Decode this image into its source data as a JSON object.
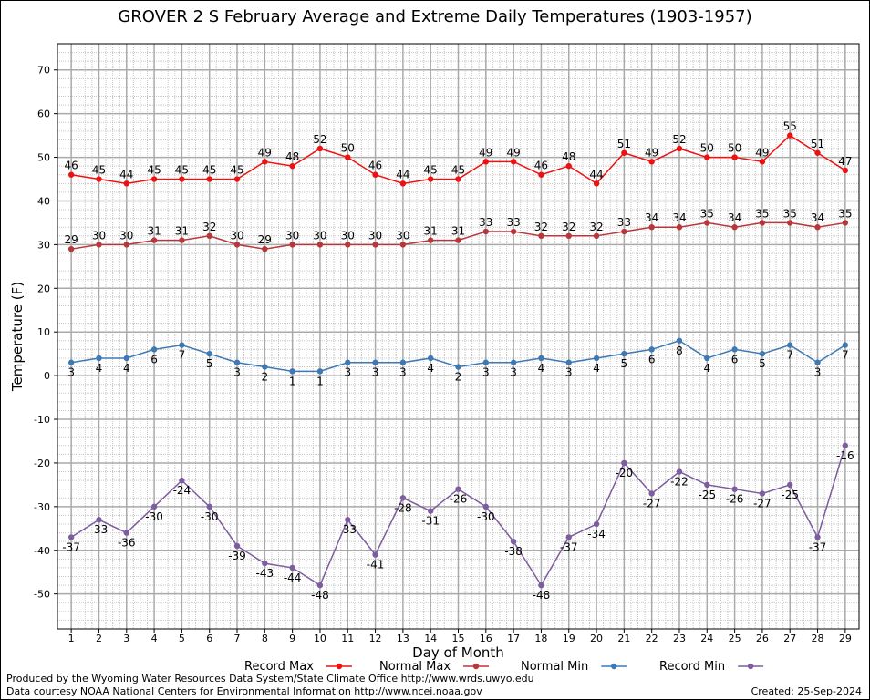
{
  "chart_data": {
    "type": "line",
    "title": "GROVER 2 S February Average and Extreme Daily Temperatures (1903-1957)",
    "xlabel": "Day of Month",
    "ylabel": "Temperature (F)",
    "x": [
      1,
      2,
      3,
      4,
      5,
      6,
      7,
      8,
      9,
      10,
      11,
      12,
      13,
      14,
      15,
      16,
      17,
      18,
      19,
      20,
      21,
      22,
      23,
      24,
      25,
      26,
      27,
      28,
      29
    ],
    "xlim": [
      0.5,
      29.5
    ],
    "ylim": [
      -58,
      76
    ],
    "yticks": [
      -50,
      -40,
      -30,
      -20,
      -10,
      0,
      10,
      20,
      30,
      40,
      50,
      60,
      70
    ],
    "grid": true,
    "legend_position": "bottom",
    "series": [
      {
        "name": "Record Max",
        "color": "#ee1111",
        "label_pos": "above",
        "values": [
          46,
          45,
          44,
          45,
          45,
          45,
          45,
          49,
          48,
          52,
          50,
          46,
          44,
          45,
          45,
          49,
          49,
          46,
          48,
          44,
          51,
          49,
          52,
          50,
          50,
          49,
          55,
          51,
          47
        ]
      },
      {
        "name": "Normal Max",
        "color": "#b8373b",
        "label_pos": "above",
        "values": [
          29,
          30,
          30,
          31,
          31,
          32,
          30,
          29,
          30,
          30,
          30,
          30,
          30,
          31,
          31,
          33,
          33,
          32,
          32,
          32,
          33,
          34,
          34,
          35,
          34,
          35,
          35,
          34,
          35
        ]
      },
      {
        "name": "Normal Min",
        "color": "#3e79b4",
        "label_pos": "below",
        "values": [
          3,
          4,
          4,
          6,
          7,
          5,
          3,
          2,
          1,
          1,
          3,
          3,
          3,
          4,
          2,
          3,
          3,
          4,
          3,
          4,
          5,
          6,
          8,
          4,
          6,
          5,
          7,
          3,
          7
        ]
      },
      {
        "name": "Record Min",
        "color": "#7d5ca0",
        "label_pos": "below",
        "values": [
          -37,
          -33,
          -36,
          -30,
          -24,
          -30,
          -39,
          -43,
          -44,
          -48,
          -33,
          -41,
          -28,
          -31,
          -26,
          -30,
          -38,
          -48,
          -37,
          -34,
          -20,
          -27,
          -22,
          -25,
          -26,
          -27,
          -25,
          -37,
          -16
        ]
      }
    ]
  },
  "footer": {
    "credit_line_1": "Produced by the Wyoming Water Resources Data System/State Climate Office http://www.wrds.uwyo.edu",
    "credit_line_2": "Data courtesy NOAA National Centers for Environmental Information http://www.ncei.noaa.gov",
    "created": "Created:  25-Sep-2024"
  }
}
